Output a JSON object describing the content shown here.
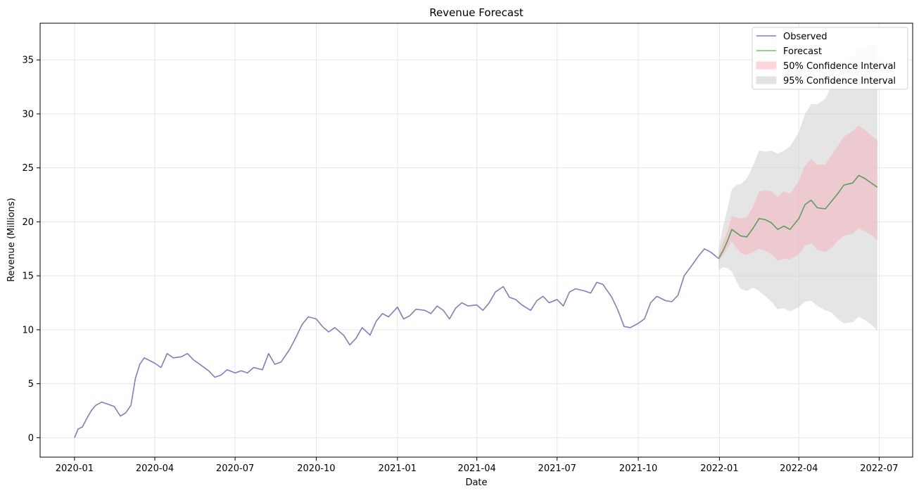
{
  "chart_data": {
    "type": "line",
    "title": "Revenue Forecast",
    "xlabel": "Date",
    "ylabel": "Revenue (Millions)",
    "x_ticks": [
      "2020-01",
      "2020-04",
      "2020-07",
      "2020-10",
      "2021-01",
      "2021-04",
      "2021-07",
      "2021-10",
      "2022-01",
      "2022-04",
      "2022-07"
    ],
    "y_ticks": [
      0,
      5,
      10,
      15,
      20,
      25,
      30,
      35
    ],
    "xlim": [
      "2019-11-23",
      "2022-08-08"
    ],
    "ylim": [
      -1.8,
      38.4
    ],
    "grid": true,
    "legend_position": "top-right",
    "colors": {
      "observed": "#7b7fc4",
      "forecast": "#5aa05a",
      "ci50": "#f4b4bf",
      "ci95": "#cfcfcf"
    },
    "legend": [
      {
        "label": "Observed",
        "kind": "line",
        "color": "#7b7fc4"
      },
      {
        "label": "Forecast",
        "kind": "line",
        "color": "#6cc46c"
      },
      {
        "label": "50% Confidence Interval",
        "kind": "patch",
        "color": "#fcd6dc"
      },
      {
        "label": "95% Confidence Interval",
        "kind": "patch",
        "color": "#e3e3e3"
      }
    ],
    "series": [
      {
        "name": "Observed",
        "x": [
          "2020-01-01",
          "2020-01-05",
          "2020-01-10",
          "2020-01-15",
          "2020-01-20",
          "2020-01-25",
          "2020-02-01",
          "2020-02-08",
          "2020-02-15",
          "2020-02-22",
          "2020-02-28",
          "2020-03-05",
          "2020-03-10",
          "2020-03-15",
          "2020-03-20",
          "2020-03-25",
          "2020-04-01",
          "2020-04-08",
          "2020-04-15",
          "2020-04-22",
          "2020-05-01",
          "2020-05-08",
          "2020-05-15",
          "2020-05-22",
          "2020-06-01",
          "2020-06-08",
          "2020-06-15",
          "2020-06-22",
          "2020-07-01",
          "2020-07-08",
          "2020-07-15",
          "2020-07-22",
          "2020-08-01",
          "2020-08-08",
          "2020-08-15",
          "2020-08-22",
          "2020-09-01",
          "2020-09-08",
          "2020-09-15",
          "2020-09-22",
          "2020-10-01",
          "2020-10-08",
          "2020-10-15",
          "2020-10-22",
          "2020-11-01",
          "2020-11-08",
          "2020-11-15",
          "2020-11-22",
          "2020-12-01",
          "2020-12-08",
          "2020-12-15",
          "2020-12-22",
          "2021-01-01",
          "2021-01-08",
          "2021-01-15",
          "2021-01-22",
          "2021-02-01",
          "2021-02-08",
          "2021-02-15",
          "2021-02-22",
          "2021-03-01",
          "2021-03-08",
          "2021-03-15",
          "2021-03-22",
          "2021-04-01",
          "2021-04-08",
          "2021-04-15",
          "2021-04-22",
          "2021-05-01",
          "2021-05-08",
          "2021-05-15",
          "2021-05-22",
          "2021-06-01",
          "2021-06-08",
          "2021-06-15",
          "2021-06-22",
          "2021-07-01",
          "2021-07-08",
          "2021-07-15",
          "2021-07-22",
          "2021-08-01",
          "2021-08-08",
          "2021-08-15",
          "2021-08-22",
          "2021-09-01",
          "2021-09-08",
          "2021-09-15",
          "2021-09-22",
          "2021-10-01",
          "2021-10-08",
          "2021-10-15",
          "2021-10-22",
          "2021-11-01",
          "2021-11-08",
          "2021-11-15",
          "2021-11-22",
          "2021-12-01",
          "2021-12-08",
          "2021-12-15",
          "2021-12-22",
          "2021-12-31"
        ],
        "y": [
          0.0,
          0.8,
          1.0,
          1.8,
          2.5,
          3.0,
          3.3,
          3.1,
          2.9,
          2.0,
          2.3,
          3.0,
          5.5,
          6.8,
          7.4,
          7.2,
          6.9,
          6.5,
          7.8,
          7.4,
          7.5,
          7.8,
          7.2,
          6.8,
          6.2,
          5.6,
          5.8,
          6.3,
          6.0,
          6.2,
          6.0,
          6.5,
          6.3,
          7.8,
          6.8,
          7.0,
          8.2,
          9.3,
          10.5,
          11.2,
          11.0,
          10.3,
          9.8,
          10.2,
          9.5,
          8.6,
          9.2,
          10.2,
          9.5,
          10.8,
          11.5,
          11.2,
          12.1,
          11.0,
          11.3,
          11.9,
          11.8,
          11.5,
          12.2,
          11.8,
          11.0,
          12.0,
          12.5,
          12.2,
          12.3,
          11.8,
          12.5,
          13.5,
          14.0,
          13.0,
          12.8,
          12.3,
          11.8,
          12.7,
          13.1,
          12.5,
          12.8,
          12.2,
          13.5,
          13.8,
          13.6,
          13.4,
          14.4,
          14.2,
          13.0,
          11.8,
          10.3,
          10.2,
          10.6,
          11.0,
          12.5,
          13.1,
          12.7,
          12.6,
          13.2,
          15.0,
          16.0,
          16.8,
          17.5,
          17.2,
          16.6
        ]
      },
      {
        "name": "Forecast",
        "x": [
          "2021-12-31",
          "2022-01-05",
          "2022-01-10",
          "2022-01-15",
          "2022-01-20",
          "2022-01-25",
          "2022-02-01",
          "2022-02-08",
          "2022-02-15",
          "2022-02-22",
          "2022-03-01",
          "2022-03-08",
          "2022-03-15",
          "2022-03-22",
          "2022-04-01",
          "2022-04-08",
          "2022-04-15",
          "2022-04-22",
          "2022-05-01",
          "2022-05-08",
          "2022-05-15",
          "2022-05-22",
          "2022-06-01",
          "2022-06-08",
          "2022-06-15",
          "2022-06-22",
          "2022-06-29"
        ],
        "y": [
          16.6,
          17.3,
          18.2,
          19.3,
          19.0,
          18.7,
          18.6,
          19.4,
          20.3,
          20.2,
          19.9,
          19.3,
          19.6,
          19.3,
          20.3,
          21.6,
          22.0,
          21.3,
          21.2,
          21.9,
          22.6,
          23.4,
          23.6,
          24.3,
          24.0,
          23.6,
          23.2
        ]
      }
    ],
    "ci50": {
      "lower": [
        16.3,
        16.9,
        17.5,
        18.2,
        17.6,
        17.1,
        16.9,
        17.2,
        17.5,
        17.3,
        17.0,
        16.4,
        16.6,
        16.5,
        17.0,
        17.8,
        18.0,
        17.4,
        17.2,
        17.6,
        18.2,
        18.7,
        18.9,
        19.4,
        19.1,
        18.8,
        18.3
      ],
      "upper": [
        17.0,
        18.1,
        19.1,
        20.5,
        20.4,
        20.3,
        20.4,
        21.4,
        22.8,
        22.9,
        22.8,
        22.3,
        22.8,
        22.6,
        23.8,
        25.2,
        25.8,
        25.3,
        25.3,
        26.2,
        27.0,
        27.9,
        28.4,
        28.9,
        28.5,
        28.0,
        27.6
      ]
    },
    "ci95": {
      "lower": [
        15.5,
        15.8,
        15.7,
        15.4,
        14.5,
        13.8,
        13.6,
        13.9,
        13.6,
        13.1,
        12.6,
        11.9,
        12.0,
        11.7,
        12.1,
        12.6,
        12.7,
        12.2,
        11.8,
        11.6,
        11.0,
        10.6,
        10.7,
        11.2,
        10.9,
        10.5,
        9.9
      ],
      "upper": [
        17.6,
        19.5,
        21.2,
        23.0,
        23.4,
        23.5,
        24.0,
        25.2,
        26.6,
        26.5,
        26.6,
        26.3,
        26.6,
        27.0,
        28.3,
        30.0,
        30.9,
        30.9,
        31.4,
        32.6,
        33.3,
        34.4,
        35.3,
        36.0,
        36.2,
        36.4,
        36.3
      ]
    }
  }
}
